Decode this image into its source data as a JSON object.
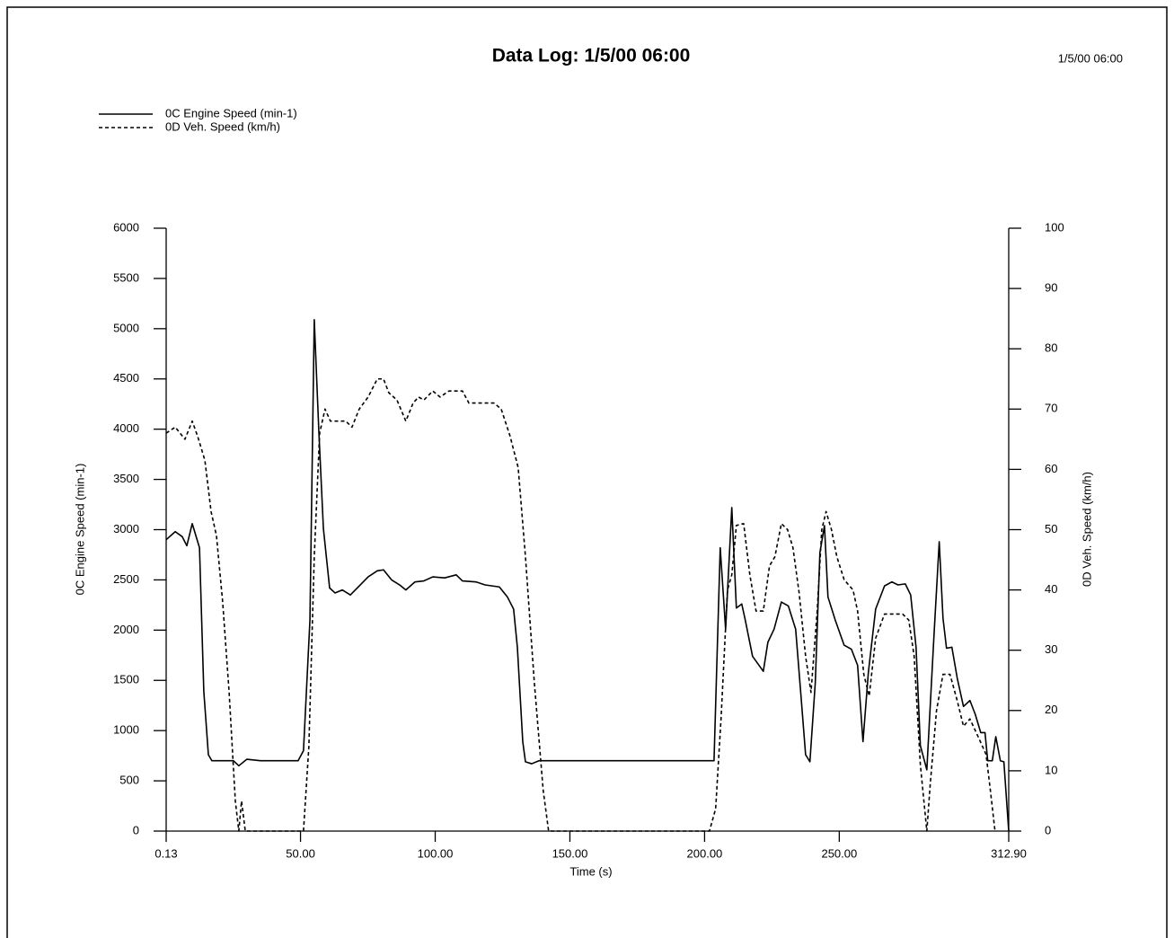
{
  "chart_data": {
    "type": "line",
    "title": "Data Log: 1/5/00 06:00",
    "timestamp": "1/5/00 06:00",
    "x_label": "Time (s)",
    "y_label": "0C Engine Speed (min-1)",
    "y2_label": "0D Veh. Speed (km/h)",
    "xlim": [
      0.13,
      312.9
    ],
    "xticks": [
      0.13,
      {
        "value": 50,
        "label": "50.00"
      },
      {
        "value": 100,
        "label": "100.00"
      },
      {
        "value": 150,
        "label": "150.00"
      },
      {
        "value": 200,
        "label": "200.00"
      },
      {
        "value": 250,
        "label": "250.00"
      },
      {
        "value": 312.9,
        "label": "312.90"
      }
    ],
    "ylim": [
      0,
      6000
    ],
    "yticks": [
      0,
      500,
      1000,
      1500,
      2000,
      2500,
      3000,
      3500,
      4000,
      4500,
      5000,
      5500,
      6000
    ],
    "y2lim": [
      0,
      100
    ],
    "y2ticks": [
      0,
      10,
      20,
      30,
      40,
      50,
      60,
      70,
      80,
      90,
      100
    ],
    "legend": "top-left",
    "series": [
      {
        "name": "0C Engine Speed (min-1)",
        "color": "#000000",
        "dash": "solid",
        "axis": "y",
        "x": [
          0.13,
          3.5,
          6.1,
          7.8,
          9.8,
          12.5,
          14.1,
          15.8,
          17.1,
          20.1,
          25.1,
          27.1,
          30.1,
          35.1,
          41.8,
          45.1,
          49.1,
          51.1,
          53.5,
          55.1,
          56.8,
          58.5,
          60.8,
          62.8,
          65.5,
          68.5,
          71.8,
          75.1,
          78.5,
          80.8,
          83.8,
          86.8,
          89.1,
          92.5,
          95.8,
          99.1,
          103.5,
          107.8,
          110.1,
          115.1,
          118.5,
          123.8,
          126.8,
          129.1,
          130.5,
          132.5,
          133.5,
          135.8,
          138.5,
          155.1,
          171.8,
          188.5,
          200.1,
          203.5,
          205.8,
          207.8,
          210.1,
          211.8,
          213.8,
          215.1,
          217.8,
          221.8,
          223.5,
          225.8,
          228.5,
          231.1,
          233.8,
          235.8,
          237.5,
          239.1,
          241.1,
          242.8,
          244.5,
          245.8,
          248.5,
          251.8,
          254.5,
          256.8,
          258.8,
          260.8,
          263.5,
          266.8,
          269.5,
          271.8,
          274.5,
          276.5,
          278.5,
          280.1,
          282.5,
          285.1,
          287.1,
          288.5,
          289.8,
          291.8,
          293.8,
          296.1,
          298.5,
          300.5,
          302.5,
          304.1,
          305.1,
          306.8,
          308.1,
          309.8,
          311.1,
          312.9
        ],
        "values": [
          2900,
          2980,
          2930,
          2840,
          3060,
          2820,
          1390,
          760,
          700,
          700,
          700,
          650,
          715,
          700,
          700,
          700,
          700,
          800,
          2100,
          5090,
          3980,
          3010,
          2420,
          2370,
          2400,
          2350,
          2440,
          2530,
          2590,
          2600,
          2500,
          2450,
          2400,
          2480,
          2490,
          2530,
          2520,
          2550,
          2490,
          2480,
          2450,
          2430,
          2330,
          2210,
          1830,
          890,
          690,
          670,
          700,
          700,
          700,
          700,
          700,
          700,
          2820,
          2010,
          3220,
          2220,
          2260,
          2100,
          1740,
          1590,
          1880,
          2010,
          2280,
          2240,
          2010,
          1340,
          760,
          690,
          1480,
          2770,
          3040,
          2330,
          2100,
          1850,
          1810,
          1650,
          890,
          1580,
          2210,
          2440,
          2480,
          2450,
          2460,
          2350,
          1830,
          850,
          610,
          1920,
          2880,
          2120,
          1820,
          1830,
          1520,
          1240,
          1300,
          1160,
          980,
          980,
          700,
          700,
          940,
          700,
          690,
          0
        ]
      },
      {
        "name": "0D Veh. Speed (km/h)",
        "color": "#000000",
        "dash": "dashed",
        "axis": "y2",
        "x": [
          0.13,
          3.5,
          7.1,
          9.8,
          11.8,
          14.5,
          16.8,
          18.8,
          21.1,
          23.5,
          25.8,
          27.1,
          28.1,
          29.5,
          51.1,
          53.1,
          55.1,
          57.1,
          59.1,
          61.1,
          66.8,
          69.1,
          71.8,
          75.1,
          78.5,
          80.8,
          82.8,
          85.8,
          89.1,
          91.8,
          93.8,
          95.8,
          99.1,
          101.8,
          105.1,
          110.1,
          112.5,
          121.8,
          124.5,
          127.8,
          130.8,
          133.5,
          136.8,
          140.1,
          142.1,
          201.8,
          204.1,
          206.1,
          208.5,
          210.1,
          211.8,
          214.5,
          216.8,
          219.1,
          221.8,
          224.1,
          226.1,
          228.5,
          230.8,
          232.8,
          235.1,
          237.5,
          239.5,
          241.8,
          243.5,
          245.1,
          247.1,
          249.1,
          251.8,
          255.1,
          256.8,
          259.1,
          261.1,
          263.5,
          266.8,
          273.5,
          275.8,
          277.8,
          280.1,
          282.5,
          283.8,
          286.1,
          288.5,
          291.1,
          293.8,
          296.1,
          298.5,
          301.8,
          304.5,
          306.1,
          307.8
        ],
        "values": [
          66,
          67,
          65,
          68,
          65.5,
          61.5,
          53,
          49,
          38,
          23,
          5,
          0,
          5,
          0,
          0,
          14,
          45.5,
          66,
          70,
          68,
          68,
          67,
          70,
          72,
          75,
          75,
          72.7,
          71.5,
          68,
          71,
          72,
          71.5,
          73,
          72,
          73,
          73,
          71,
          71,
          70,
          65.5,
          60.3,
          45.5,
          24.6,
          6.7,
          0,
          0,
          3.7,
          18.6,
          40,
          42.5,
          50.7,
          51,
          42.5,
          36.5,
          36.5,
          44,
          45.5,
          51,
          50,
          47,
          39.5,
          29,
          23,
          36.5,
          50,
          53,
          50,
          45.5,
          41.7,
          40,
          36.5,
          26,
          22.4,
          32,
          36,
          36,
          35,
          29,
          11,
          0,
          8,
          20,
          26,
          26,
          21.6,
          17.4,
          18.6,
          15.4,
          12.7,
          6.7,
          0
        ]
      }
    ]
  }
}
